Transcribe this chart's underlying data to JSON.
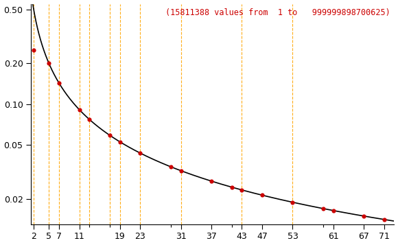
{
  "title": "(15811388 values from  1 to   999999898700625)",
  "title_color": "#cc0000",
  "primes": [
    2,
    5,
    7,
    11,
    13,
    17,
    19,
    23,
    29,
    31,
    37,
    41,
    43,
    47,
    53,
    59,
    61,
    67,
    71
  ],
  "densities": [
    0.25,
    0.2,
    0.142857,
    0.090909,
    0.076923,
    0.058824,
    0.052632,
    0.043478,
    0.034483,
    0.032258,
    0.027027,
    0.02439,
    0.023256,
    0.021277,
    0.018868,
    0.016949,
    0.016393,
    0.014925,
    0.014085
  ],
  "orange_dashed_primes": [
    2,
    5,
    7,
    11,
    13,
    17,
    19,
    23,
    31,
    43,
    53
  ],
  "background_color": "#ffffff",
  "curve_color": "#000000",
  "dot_color": "#cc0000",
  "vline_color": "#ffa500",
  "xlim": [
    1.5,
    73
  ],
  "ylim_log": [
    0.013,
    0.55
  ],
  "yticks": [
    0.02,
    0.05,
    0.1,
    0.2,
    0.5
  ],
  "ytick_labels": [
    "0.02",
    "0.05",
    "0.10",
    "0.20",
    "0.50"
  ],
  "xtick_major": [
    2,
    5,
    7,
    11,
    19,
    23,
    31,
    37,
    43,
    47,
    53,
    61,
    67,
    71
  ],
  "xtick_major_labels": [
    "2",
    "5",
    "7",
    "11",
    "19",
    "23",
    "31",
    "37",
    "43",
    "47",
    "53",
    "61",
    "67",
    "71"
  ],
  "xtick_minor": [
    13,
    17,
    29,
    41,
    59
  ]
}
